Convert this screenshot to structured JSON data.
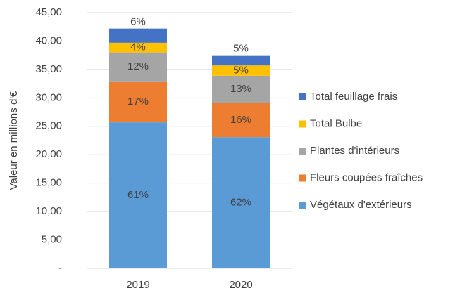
{
  "chart_data": {
    "type": "stacked_bar",
    "y_label": "Valeur en millions d'€",
    "categories": [
      "2019",
      "2020"
    ],
    "series": [
      {
        "name": "Végétaux d'extérieurs",
        "color": "#5b9bd5",
        "values": [
          25.7,
          23.1
        ],
        "value_labels": [
          "61%",
          "62%"
        ]
      },
      {
        "name": "Fleurs coupées fraîches",
        "color": "#ed7d31",
        "values": [
          7.2,
          6.0
        ],
        "value_labels": [
          "17%",
          "16%"
        ]
      },
      {
        "name": "Plantes d'intérieurs",
        "color": "#a5a5a5",
        "values": [
          5.1,
          4.8
        ],
        "value_labels": [
          "12%",
          "13%"
        ]
      },
      {
        "name": "Total Bulbe",
        "color": "#ffc000",
        "values": [
          1.7,
          1.8
        ],
        "value_labels": [
          "4%",
          "5%"
        ]
      },
      {
        "name": "Total feuillage frais",
        "color": "#4472c4",
        "values": [
          2.5,
          1.8
        ],
        "value_labels": [
          "6%",
          "5%"
        ]
      }
    ],
    "ylim": [
      0,
      45
    ],
    "yticks": [
      {
        "value": 0,
        "label": "-"
      },
      {
        "value": 5,
        "label": "5,00"
      },
      {
        "value": 10,
        "label": "10,00"
      },
      {
        "value": 15,
        "label": "15,00"
      },
      {
        "value": 20,
        "label": "20,00"
      },
      {
        "value": 25,
        "label": "25,00"
      },
      {
        "value": 30,
        "label": "30,00"
      },
      {
        "value": 35,
        "label": "35,00"
      },
      {
        "value": 40,
        "label": "40,00"
      },
      {
        "value": 45,
        "label": "45,00"
      }
    ],
    "grid": true,
    "legend": "right"
  }
}
